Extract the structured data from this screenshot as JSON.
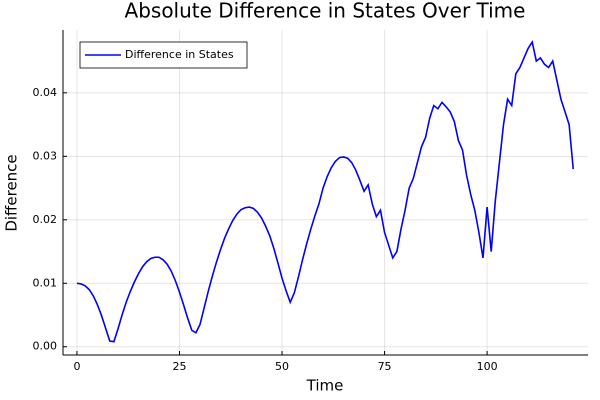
{
  "chart_data": {
    "type": "line",
    "title": "Absolute Difference in States Over Time",
    "x_label": "Time",
    "y_label": "Difference",
    "x": [
      0,
      1,
      2,
      3,
      4,
      5,
      6,
      7,
      8,
      9,
      10,
      11,
      12,
      13,
      14,
      15,
      16,
      17,
      18,
      19,
      20,
      21,
      22,
      23,
      24,
      25,
      26,
      27,
      28,
      29,
      30,
      31,
      32,
      33,
      34,
      35,
      36,
      37,
      38,
      39,
      40,
      41,
      42,
      43,
      44,
      45,
      46,
      47,
      48,
      49,
      50,
      51,
      52,
      53,
      54,
      55,
      56,
      57,
      58,
      59,
      60,
      61,
      62,
      63,
      64,
      65,
      66,
      67,
      68,
      69,
      70,
      71,
      72,
      73,
      74,
      75,
      76,
      77,
      78,
      79,
      80,
      81,
      82,
      83,
      84,
      85,
      86,
      87,
      88,
      89,
      90,
      91,
      92,
      93,
      94,
      95,
      96,
      97,
      98,
      99,
      100,
      101,
      102,
      103,
      104,
      105,
      106,
      107,
      108,
      109,
      110,
      111,
      112,
      113,
      114,
      115,
      116,
      117,
      118,
      119,
      120,
      121
    ],
    "series": [
      {
        "name": "Difference in States",
        "color": "#0000ff",
        "values": [
          0.01,
          0.0099,
          0.0096,
          0.009,
          0.008,
          0.0066,
          0.0049,
          0.0029,
          0.0009,
          0.0008,
          0.0028,
          0.005,
          0.007,
          0.0087,
          0.0102,
          0.0115,
          0.0126,
          0.0134,
          0.0139,
          0.0141,
          0.0141,
          0.0137,
          0.013,
          0.0119,
          0.0104,
          0.0086,
          0.0066,
          0.0045,
          0.0026,
          0.0022,
          0.0035,
          0.0061,
          0.0087,
          0.0111,
          0.0133,
          0.0153,
          0.0171,
          0.0186,
          0.0199,
          0.0209,
          0.0216,
          0.0219,
          0.022,
          0.0218,
          0.0212,
          0.0203,
          0.019,
          0.0175,
          0.0155,
          0.0132,
          0.0108,
          0.0088,
          0.007,
          0.0085,
          0.011,
          0.0137,
          0.0162,
          0.0185,
          0.0206,
          0.0225,
          0.025,
          0.0268,
          0.0282,
          0.0292,
          0.0298,
          0.0299,
          0.0297,
          0.029,
          0.0278,
          0.0262,
          0.0245,
          0.0255,
          0.0225,
          0.0205,
          0.0215,
          0.018,
          0.016,
          0.014,
          0.015,
          0.0185,
          0.0215,
          0.025,
          0.0265,
          0.029,
          0.0315,
          0.033,
          0.036,
          0.038,
          0.0375,
          0.0385,
          0.0378,
          0.037,
          0.0355,
          0.0325,
          0.031,
          0.027,
          0.024,
          0.0215,
          0.018,
          0.014,
          0.022,
          0.015,
          0.023,
          0.029,
          0.035,
          0.039,
          0.038,
          0.043,
          0.044,
          0.0455,
          0.047,
          0.048,
          0.045,
          0.0455,
          0.0445,
          0.044,
          0.045,
          0.042,
          0.039,
          0.037,
          0.035,
          0.028
        ]
      }
    ],
    "xlim": [
      -3.4,
      124.6
    ],
    "xticks": [
      0,
      25,
      50,
      75,
      100
    ],
    "ylim": [
      -0.0013,
      0.0499
    ],
    "yticks": [
      {
        "value": 0,
        "label": "0.00"
      },
      0.01,
      0.02,
      0.03,
      0.04
    ],
    "grid": true,
    "legend": "top-left"
  }
}
